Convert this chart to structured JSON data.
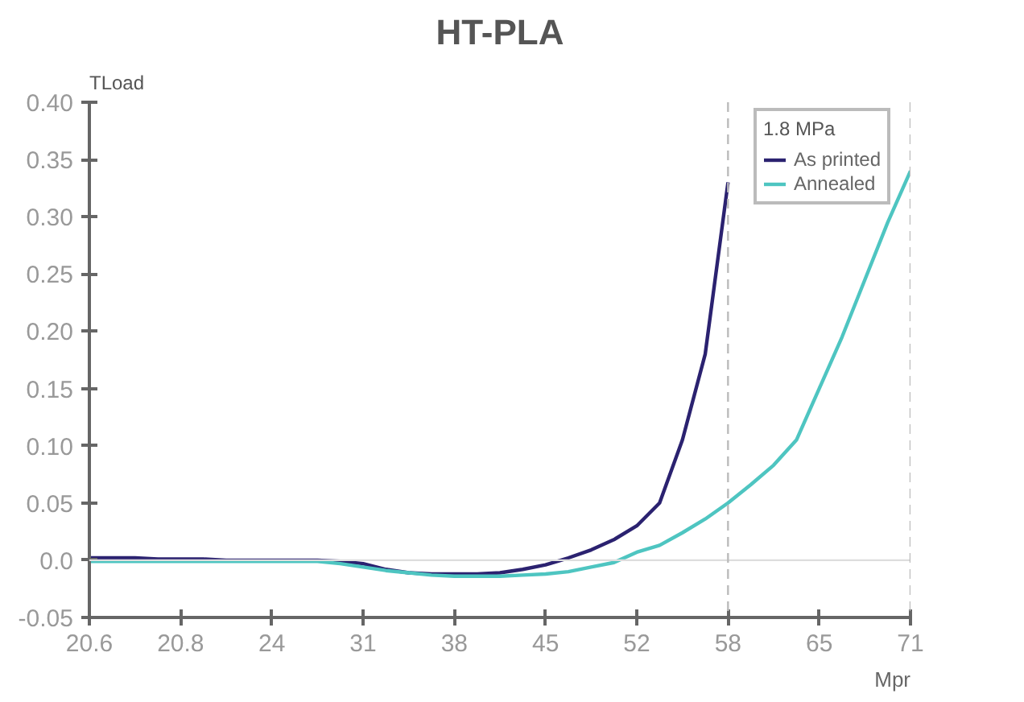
{
  "chart_data": {
    "type": "line",
    "title": "HT-PLA",
    "xlabel": "Mpr",
    "ylabel": "TLoad",
    "legend_title": "1.8 MPa",
    "legend": "top right",
    "grid": false,
    "marker": "none",
    "line_style": "solid",
    "categories": [
      "20.6",
      null,
      null,
      null,
      "20.8",
      null,
      null,
      null,
      "24",
      null,
      null,
      null,
      "31",
      null,
      null,
      null,
      "38",
      null,
      null,
      null,
      "45",
      null,
      null,
      null,
      "52",
      null,
      null,
      null,
      "58",
      null,
      null,
      null,
      "65",
      null,
      null,
      null,
      "71"
    ],
    "ylim": [
      -0.05,
      0.4
    ],
    "yticks": [
      {
        "value": -0.05,
        "label": "-0.05"
      },
      {
        "value": 0,
        "label": "0.0"
      },
      {
        "value": 0.05,
        "label": "0.05"
      },
      {
        "value": 0.1,
        "label": "0.10"
      },
      {
        "value": 0.15,
        "label": "0.15"
      },
      {
        "value": 0.2,
        "label": "0.20"
      },
      {
        "value": 0.25,
        "label": "0.25"
      },
      {
        "value": 0.3,
        "label": "0.30"
      },
      {
        "value": 0.35,
        "label": "0.35"
      },
      {
        "value": 0.4,
        "label": "0.40"
      }
    ],
    "ref_lines": [
      {
        "axis": "y",
        "value": 0,
        "color": "#dddddd",
        "line_style": "solid"
      },
      {
        "axis": "x",
        "value": "58",
        "color": "#bbbbbb",
        "line_style": "dashed"
      },
      {
        "axis": "x",
        "value": "71",
        "color": "#bbbbbb",
        "line_style": "dashed"
      }
    ],
    "series": [
      {
        "name": "As printed",
        "color": "#2b2270",
        "values": [
          0.002,
          0.002,
          0.002,
          0.001,
          0.001,
          0.001,
          0.0,
          0.0,
          0.0,
          0.0,
          0.0,
          -0.001,
          -0.003,
          -0.008,
          -0.011,
          -0.012,
          -0.012,
          -0.012,
          -0.011,
          -0.008,
          -0.004,
          0.002,
          0.009,
          0.018,
          0.03,
          0.05,
          0.105,
          0.18,
          0.33,
          null,
          null,
          null,
          null,
          null,
          null,
          null,
          null
        ]
      },
      {
        "name": "Annealed",
        "color": "#4ec5c1",
        "values": [
          -0.001,
          -0.001,
          -0.001,
          -0.001,
          -0.001,
          -0.001,
          -0.001,
          -0.001,
          -0.001,
          -0.001,
          -0.001,
          -0.003,
          -0.006,
          -0.009,
          -0.011,
          -0.013,
          -0.014,
          -0.014,
          -0.014,
          -0.013,
          -0.012,
          -0.01,
          -0.006,
          -0.002,
          0.007,
          0.013,
          0.024,
          0.036,
          0.05,
          0.066,
          0.083,
          0.105,
          0.15,
          0.195,
          0.245,
          0.295,
          0.34
        ]
      }
    ]
  }
}
